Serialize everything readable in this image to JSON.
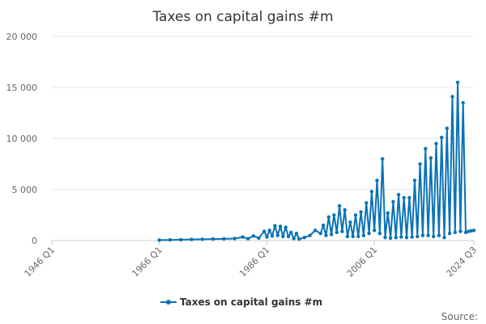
{
  "chart_data": {
    "type": "line",
    "title": "Taxes on capital gains #m",
    "xlabel": "",
    "ylabel": "",
    "ylim": [
      0,
      20000
    ],
    "yticks": [
      0,
      5000,
      10000,
      15000,
      20000
    ],
    "ytick_labels": [
      "0",
      "5 000",
      "10 000",
      "15 000",
      "20 000"
    ],
    "x_range": [
      "1946 Q1",
      "2024 Q3"
    ],
    "xtick_labels": [
      "1946 Q1",
      "1966 Q1",
      "1986 Q1",
      "2006 Q1",
      "2024 Q3"
    ],
    "grid": "horizontal",
    "legend_position": "bottom",
    "series": [
      {
        "name": "Taxes on capital gains #m",
        "color": "#0a72b5",
        "points": [
          [
            "1966 Q1",
            50
          ],
          [
            "1968 Q1",
            60
          ],
          [
            "1970 Q1",
            90
          ],
          [
            "1972 Q1",
            110
          ],
          [
            "1974 Q1",
            130
          ],
          [
            "1976 Q1",
            150
          ],
          [
            "1978 Q1",
            170
          ],
          [
            "1980 Q1",
            200
          ],
          [
            "1981 Q3",
            350
          ],
          [
            "1982 Q3",
            180
          ],
          [
            "1983 Q3",
            450
          ],
          [
            "1984 Q3",
            250
          ],
          [
            "1985 Q3",
            900
          ],
          [
            "1986 Q1",
            350
          ],
          [
            "1986 Q3",
            1000
          ],
          [
            "1987 Q1",
            450
          ],
          [
            "1987 Q3",
            1450
          ],
          [
            "1988 Q1",
            500
          ],
          [
            "1988 Q3",
            1400
          ],
          [
            "1989 Q1",
            400
          ],
          [
            "1989 Q3",
            1300
          ],
          [
            "1990 Q1",
            400
          ],
          [
            "1990 Q3",
            800
          ],
          [
            "1991 Q1",
            200
          ],
          [
            "1991 Q3",
            700
          ],
          [
            "1992 Q1",
            150
          ],
          [
            "1993 Q1",
            300
          ],
          [
            "1994 Q1",
            500
          ],
          [
            "1995 Q1",
            1000
          ],
          [
            "1996 Q1",
            700
          ],
          [
            "1996 Q3",
            1500
          ],
          [
            "1997 Q1",
            500
          ],
          [
            "1997 Q3",
            2300
          ],
          [
            "1998 Q1",
            600
          ],
          [
            "1998 Q3",
            2500
          ],
          [
            "1999 Q1",
            800
          ],
          [
            "1999 Q3",
            3400
          ],
          [
            "2000 Q1",
            900
          ],
          [
            "2000 Q3",
            3000
          ],
          [
            "2001 Q1",
            400
          ],
          [
            "2001 Q3",
            1800
          ],
          [
            "2002 Q1",
            400
          ],
          [
            "2002 Q3",
            2500
          ],
          [
            "2003 Q1",
            400
          ],
          [
            "2003 Q3",
            2800
          ],
          [
            "2004 Q1",
            500
          ],
          [
            "2004 Q3",
            3700
          ],
          [
            "2005 Q1",
            700
          ],
          [
            "2005 Q3",
            4800
          ],
          [
            "2006 Q1",
            1000
          ],
          [
            "2006 Q3",
            5900
          ],
          [
            "2007 Q1",
            700
          ],
          [
            "2007 Q3",
            8000
          ],
          [
            "2008 Q1",
            300
          ],
          [
            "2008 Q3",
            2700
          ],
          [
            "2009 Q1",
            250
          ],
          [
            "2009 Q3",
            3800
          ],
          [
            "2010 Q1",
            300
          ],
          [
            "2010 Q3",
            4500
          ],
          [
            "2011 Q1",
            350
          ],
          [
            "2011 Q3",
            4200
          ],
          [
            "2012 Q1",
            300
          ],
          [
            "2012 Q3",
            4200
          ],
          [
            "2013 Q1",
            350
          ],
          [
            "2013 Q3",
            5900
          ],
          [
            "2014 Q1",
            400
          ],
          [
            "2014 Q3",
            7500
          ],
          [
            "2015 Q1",
            500
          ],
          [
            "2015 Q3",
            9000
          ],
          [
            "2016 Q1",
            500
          ],
          [
            "2016 Q3",
            8100
          ],
          [
            "2017 Q1",
            400
          ],
          [
            "2017 Q3",
            9500
          ],
          [
            "2018 Q1",
            500
          ],
          [
            "2018 Q3",
            10100
          ],
          [
            "2019 Q1",
            300
          ],
          [
            "2019 Q3",
            11000
          ],
          [
            "2020 Q1",
            700
          ],
          [
            "2020 Q3",
            14100
          ],
          [
            "2021 Q1",
            800
          ],
          [
            "2021 Q3",
            15500
          ],
          [
            "2022 Q1",
            900
          ],
          [
            "2022 Q3",
            13500
          ],
          [
            "2023 Q1",
            800
          ],
          [
            "2023 Q3",
            900
          ],
          [
            "2024 Q1",
            950
          ],
          [
            "2024 Q3",
            1000
          ]
        ]
      }
    ]
  },
  "legend": {
    "label": "Taxes on capital gains #m"
  },
  "footer": {
    "source_label": "Source:"
  }
}
